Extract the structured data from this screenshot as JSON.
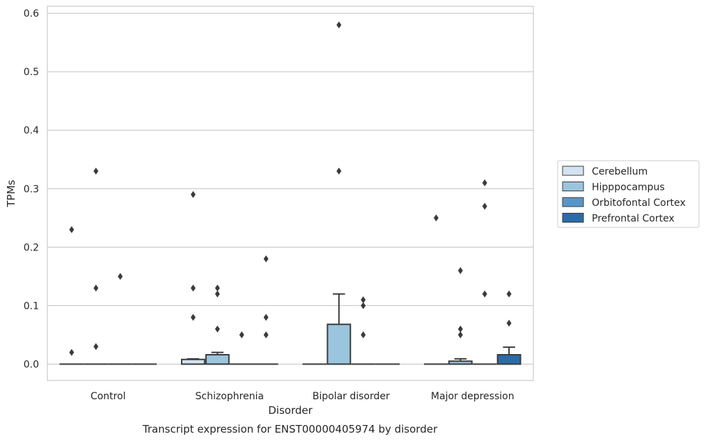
{
  "chart_data": {
    "type": "box",
    "title": "",
    "caption": "Transcript expression for ENST00000405974 by disorder",
    "xlabel": "Disorder",
    "ylabel": "TPMs",
    "ylim": [
      -0.028,
      0.612
    ],
    "yticks": [
      0.0,
      0.1,
      0.2,
      0.3,
      0.4,
      0.5,
      0.6
    ],
    "ytick_labels": [
      "0.0",
      "0.1",
      "0.2",
      "0.3",
      "0.4",
      "0.5",
      "0.6"
    ],
    "grid": "horizontal",
    "legend_position": "right",
    "categories": [
      "Control",
      "Schizophrenia",
      "Bipolar disorder",
      "Major depression"
    ],
    "series": [
      {
        "name": "Cerebellum",
        "color": "#d3e3f2",
        "boxes": [
          {
            "q1": 0,
            "median": 0,
            "q3": 0,
            "whislo": 0,
            "whishi": 0,
            "fliers": [
              0.23,
              0.02
            ]
          },
          {
            "q1": 0,
            "median": 0,
            "q3": 0.008,
            "whislo": 0,
            "whishi": 0.009,
            "fliers": [
              0.29,
              0.13,
              0.08
            ]
          },
          {
            "q1": 0,
            "median": 0,
            "q3": 0,
            "whislo": 0,
            "whishi": 0,
            "fliers": []
          },
          {
            "q1": 0,
            "median": 0,
            "q3": 0,
            "whislo": 0,
            "whishi": 0,
            "fliers": [
              0.25
            ]
          }
        ]
      },
      {
        "name": "Hipppocampus",
        "color": "#9ac5dd",
        "boxes": [
          {
            "q1": 0,
            "median": 0,
            "q3": 0,
            "whislo": 0,
            "whishi": 0,
            "fliers": [
              0.33,
              0.13,
              0.03
            ]
          },
          {
            "q1": 0,
            "median": 0,
            "q3": 0.016,
            "whislo": 0,
            "whishi": 0.02,
            "fliers": [
              0.13,
              0.12,
              0.06
            ]
          },
          {
            "q1": 0,
            "median": 0,
            "q3": 0.068,
            "whislo": 0,
            "whishi": 0.12,
            "fliers": [
              0.58,
              0.33
            ]
          },
          {
            "q1": 0,
            "median": 0,
            "q3": 0.005,
            "whislo": 0,
            "whishi": 0.009,
            "fliers": [
              0.16,
              0.06,
              0.05
            ]
          }
        ]
      },
      {
        "name": "Orbitofontal Cortex",
        "color": "#5797c8",
        "boxes": [
          {
            "q1": 0,
            "median": 0,
            "q3": 0,
            "whislo": 0,
            "whishi": 0,
            "fliers": [
              0.15
            ]
          },
          {
            "q1": 0,
            "median": 0,
            "q3": 0,
            "whislo": 0,
            "whishi": 0,
            "fliers": [
              0.05
            ]
          },
          {
            "q1": 0,
            "median": 0,
            "q3": 0,
            "whislo": 0,
            "whishi": 0,
            "fliers": [
              0.11,
              0.1,
              0.05
            ]
          },
          {
            "q1": 0,
            "median": 0,
            "q3": 0,
            "whislo": 0,
            "whishi": 0,
            "fliers": [
              0.31,
              0.27,
              0.12
            ]
          }
        ]
      },
      {
        "name": "Prefrontal Cortex",
        "color": "#2c6ba8",
        "boxes": [
          {
            "q1": 0,
            "median": 0,
            "q3": 0,
            "whislo": 0,
            "whishi": 0,
            "fliers": []
          },
          {
            "q1": 0,
            "median": 0,
            "q3": 0,
            "whislo": 0,
            "whishi": 0,
            "fliers": [
              0.18,
              0.08,
              0.05
            ]
          },
          {
            "q1": 0,
            "median": 0,
            "q3": 0,
            "whislo": 0,
            "whishi": 0,
            "fliers": []
          },
          {
            "q1": 0,
            "median": 0,
            "q3": 0.016,
            "whislo": 0,
            "whishi": 0.029,
            "fliers": [
              0.12,
              0.07
            ]
          }
        ]
      }
    ]
  }
}
